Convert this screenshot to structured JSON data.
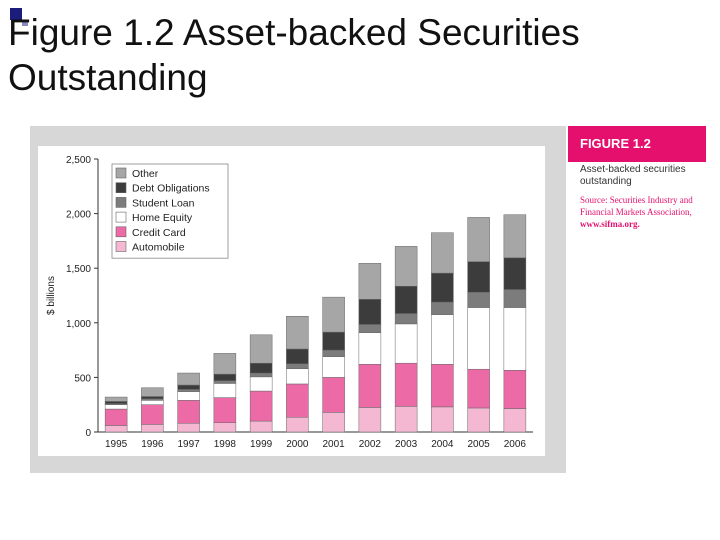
{
  "slide": {
    "title": "Figure 1.2 Asset-backed Securities Outstanding"
  },
  "figure": {
    "label": "FIGURE 1.2",
    "caption": "Asset-backed securities outstanding",
    "source_prefix": "Source: Securities Industry and Financial Markets Association, ",
    "source_url": "www.sifma.org."
  },
  "colors": {
    "Other": "#a6a6a6",
    "Debt Obligations": "#3c3c3c",
    "Student Loan": "#7c7c7c",
    "Home Equity": "#ffffff",
    "Credit Card": "#ec6aa6",
    "Automobile": "#f4b8d2",
    "accent": "#e5106e"
  },
  "chart_data": {
    "type": "bar",
    "stacked": true,
    "title": "Asset-backed securities outstanding",
    "xlabel": "",
    "ylabel": "$ billions",
    "ylim": [
      0,
      2500
    ],
    "yticks": [
      0,
      500,
      1000,
      1500,
      2000,
      2500
    ],
    "ytick_labels": [
      "0",
      "500",
      "1,000",
      "1,500",
      "2,000",
      "2,500"
    ],
    "categories": [
      "1995",
      "1996",
      "1997",
      "1998",
      "1999",
      "2000",
      "2001",
      "2002",
      "2003",
      "2004",
      "2005",
      "2006"
    ],
    "legend_position": "top-left",
    "legend_order": [
      "Other",
      "Debt Obligations",
      "Student Loan",
      "Home Equity",
      "Credit Card",
      "Automobile"
    ],
    "series": [
      {
        "name": "Automobile",
        "values": [
          60,
          70,
          80,
          85,
          100,
          135,
          180,
          225,
          235,
          230,
          220,
          215
        ]
      },
      {
        "name": "Credit Card",
        "values": [
          150,
          180,
          210,
          230,
          275,
          305,
          320,
          395,
          395,
          390,
          355,
          350
        ]
      },
      {
        "name": "Home Equity",
        "values": [
          40,
          40,
          80,
          130,
          130,
          140,
          190,
          290,
          360,
          455,
          565,
          575
        ]
      },
      {
        "name": "Student Loan",
        "values": [
          10,
          15,
          20,
          25,
          35,
          45,
          60,
          75,
          95,
          115,
          140,
          165
        ]
      },
      {
        "name": "Debt Obligations",
        "values": [
          20,
          20,
          40,
          60,
          90,
          135,
          165,
          230,
          250,
          265,
          280,
          290
        ]
      },
      {
        "name": "Other",
        "values": [
          40,
          80,
          110,
          190,
          260,
          300,
          320,
          330,
          365,
          370,
          405,
          395
        ]
      }
    ]
  }
}
